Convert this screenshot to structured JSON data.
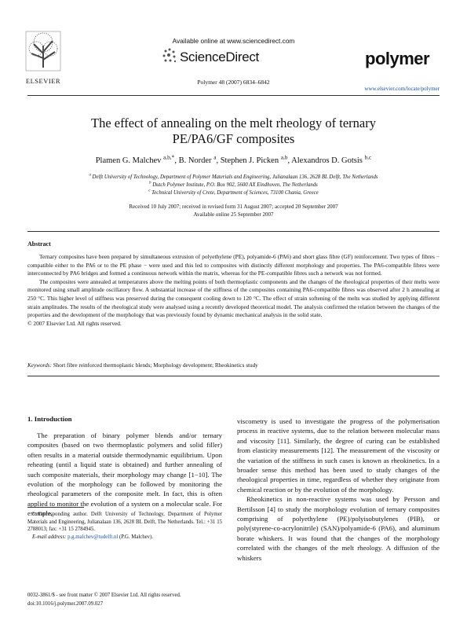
{
  "header": {
    "publisher": "ELSEVIER",
    "available": "Available online at www.sciencedirect.com",
    "platform": "ScienceDirect",
    "citation": "Polymer 48 (2007) 6834–6842",
    "journal": "polymer",
    "url": "www.elsevier.com/locate/polymer"
  },
  "article": {
    "title": [
      "The effect of annealing on the melt rheology of ternary",
      "PE/PA6/GF composites"
    ],
    "authors": [
      {
        "name": "Plamen G. Malchev",
        "sup": "a,b,*"
      },
      {
        "name": ", B. Norder",
        "sup": "a"
      },
      {
        "name": ", Stephen J. Picken",
        "sup": "a,b"
      },
      {
        "name": ", Alexandros D. Gotsis",
        "sup": "b,c"
      }
    ],
    "affiliations": [
      {
        "mark": "a",
        "text": "Delft University of Technology, Department of Polymer Materials and Engineering, Julianalaan 136, 2628 BL Delft, The Netherlands"
      },
      {
        "mark": "b",
        "text": "Dutch Polymer Institute, P.O. Box 902, 5600 AX Eindhoven, The Netherlands"
      },
      {
        "mark": "c",
        "text": "Technical University of Crete, Department of Sciences, 73100 Chania, Greece"
      }
    ],
    "dates": [
      "Received 10 July 2007; received in revised form 31 August 2007; accepted 20 September 2007",
      "Available online 25 September 2007"
    ]
  },
  "abstract": {
    "heading": "Abstract",
    "paragraphs": [
      "Ternary composites have been prepared by simultaneous extrusion of polyethylene (PE), polyamide-6 (PA6) and short glass fibre (GF) reinforcement. Two types of fibres − compatible either to the PA6 or to the PE phase − were used and this led to composites with distinctly different morphology and properties. The PA6-compatible fibres were interconnected by PA6 bridges and formed a continuous network within the matrix, whereas for the PE-compatible fibres such a network was not formed.",
      "The composites were annealed at temperatures above the melting points of both thermoplastic components and the changes of the rheological properties of their melts were monitored using small amplitude oscillatory flow. A substantial increase of the stiffness of the composites containing PA6-compatible fibres was observed after 2 h annealing at 250 °C. This higher level of stiffness was preserved during the consequent cooling down to 120 °C. The effect of strain softening of the melts was studied by applying different strain amplitudes. The results of the rheological study were analysed using a recently developed theoretical model. The analysis confirmed the relation between the changes of the properties and the development of the morphology that was previously found by dynamic mechanical analysis in the solid state."
    ],
    "copyright": "© 2007 Elsevier Ltd. All rights reserved.",
    "keywords_label": "Keywords:",
    "keywords": "Short fibre reinforced thermoplastic blends; Morphology development; Rheokinetics study"
  },
  "introduction": {
    "heading": "1. Introduction",
    "left": [
      "The preparation of binary polymer blends and/or ternary composites (based on two thermoplastic polymers and solid filler) often results in a material outside thermodynamic equilibrium. Upon reheating (until a liquid state is obtained) and further annealing of such composite materials, their morphology may change [1−10]. The evolution of the morphology can be followed by monitoring the rheological parameters of the composite melt. In fact, this is often applied to monitor the evolution of a system on a molecular scale. For example,"
    ],
    "right": [
      "viscometry is used to investigate the progress of the polymerisation process in reactive systems, due to the relation between molecular mass and viscosity [11]. Similarly, the degree of curing can be established from elasticity measurements [12]. The measurement of the viscosity or the variation of the stiffness in such cases is known as rheokinetics. In a broader sense this method has been used to study changes of the rheological properties in time, regardless of whether they originate from chemical reaction or by the evolution of the morphology.",
      "Rheokinetics in non-reactive systems was used by Persson and Bertilsson [4] to study the morphology evolution of ternary composites comprising of polyethylene (PE)/polyisobutylenes (PIB), or poly(styrene-co-acrylonitrile) (SAN)/polyamide-6 (PA6), and aluminum borate whiskers. It was found that the changes of the morphology correlated with the changes of the melt rheology. A diffusion of the whiskers"
    ]
  },
  "footnote": {
    "corresponding": "* Corresponding author. Delft University of Technology, Department of Polymer Materials and Engineering, Julianalaan 136, 2628 BL Delft, The Netherlands. Tel.: +31 15 2788013; fax: +31 15 2784945.",
    "email_label": "E-mail address:",
    "email": "p.g.malchev@tudelft.nl",
    "email_owner": "(P.G. Malchev)."
  },
  "footer": [
    "0032-3861/$ - see front matter © 2007 Elsevier Ltd. All rights reserved.",
    "doi:10.1016/j.polymer.2007.09.027"
  ]
}
